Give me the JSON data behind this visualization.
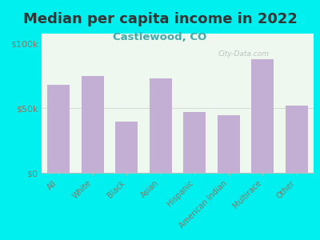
{
  "title": "Median per capita income in 2022",
  "subtitle": "Castlewood, CO",
  "categories": [
    "All",
    "White",
    "Black",
    "Asian",
    "Hispanic",
    "American Indian",
    "Multirace",
    "Other"
  ],
  "values": [
    68000,
    75000,
    40000,
    73000,
    47000,
    45000,
    88000,
    52000
  ],
  "bar_color": "#c3aed4",
  "background_color": "#00f0f0",
  "plot_bg_color": "#eef8ee",
  "title_color": "#333333",
  "subtitle_color": "#44aaaa",
  "tick_label_color": "#887766",
  "yticks": [
    0,
    50000,
    100000
  ],
  "ytick_labels": [
    "$0",
    "$50k",
    "$100k"
  ],
  "ylim": [
    0,
    108000
  ],
  "watermark": "City-Data.com",
  "title_fontsize": 13,
  "subtitle_fontsize": 9.5
}
